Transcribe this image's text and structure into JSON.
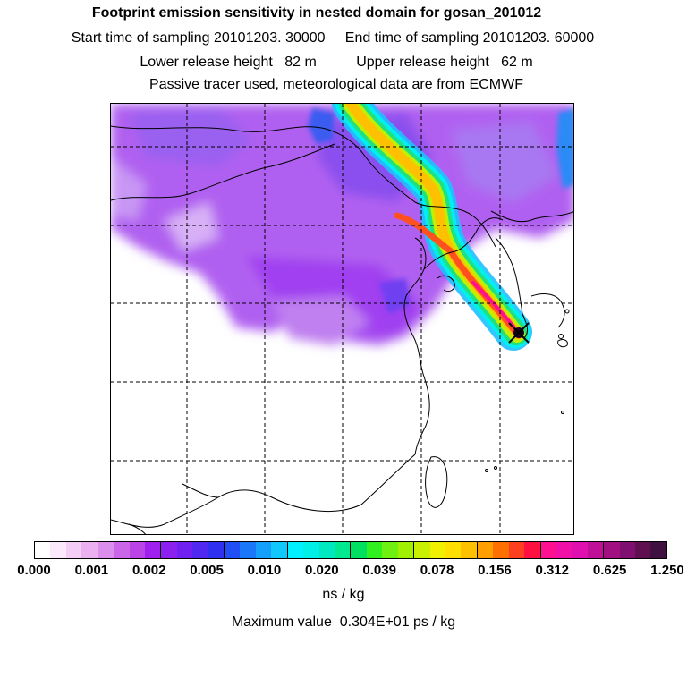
{
  "header": {
    "title": "Footprint emission sensitivity in nested domain for gosan_201012",
    "sampling_line": "Start time of sampling 20101203. 30000     End time of sampling 20101203. 60000",
    "height_line": "Lower release height   82 m          Upper release height   62 m",
    "tracer_line": "Passive tracer used, meteorological data are from ECMWF"
  },
  "map": {
    "receptor_marker": "x-marker-icon",
    "grid_lines": "dashed"
  },
  "colorbar": {
    "colors": [
      "#ffffff",
      "#fbe8fb",
      "#f3cdf5",
      "#eab0f0",
      "#dc8eec",
      "#cc66e8",
      "#bb44e6",
      "#a020f0",
      "#8c20ef",
      "#7020f0",
      "#5028f0",
      "#3030f0",
      "#2050f5",
      "#1a78f8",
      "#14a0fa",
      "#10c8fc",
      "#00f0ff",
      "#00f0e8",
      "#00e8c0",
      "#00e890",
      "#00e060",
      "#30f020",
      "#70f010",
      "#a0f000",
      "#c8f000",
      "#f0f000",
      "#ffe000",
      "#ffc000",
      "#ffa000",
      "#ff7000",
      "#ff4020",
      "#ff1040",
      "#ff1090",
      "#f010a8",
      "#e010b0",
      "#c01098",
      "#a01080",
      "#801070",
      "#601050",
      "#401040"
    ],
    "labels": [
      "0.000",
      "0.001",
      "0.002",
      "0.005",
      "0.010",
      "0.020",
      "0.039",
      "0.078",
      "0.156",
      "0.312",
      "0.625",
      "1.250"
    ],
    "units": "ns / kg"
  },
  "footer": {
    "max_value": "Maximum value  0.304E+01 ps / kg"
  }
}
